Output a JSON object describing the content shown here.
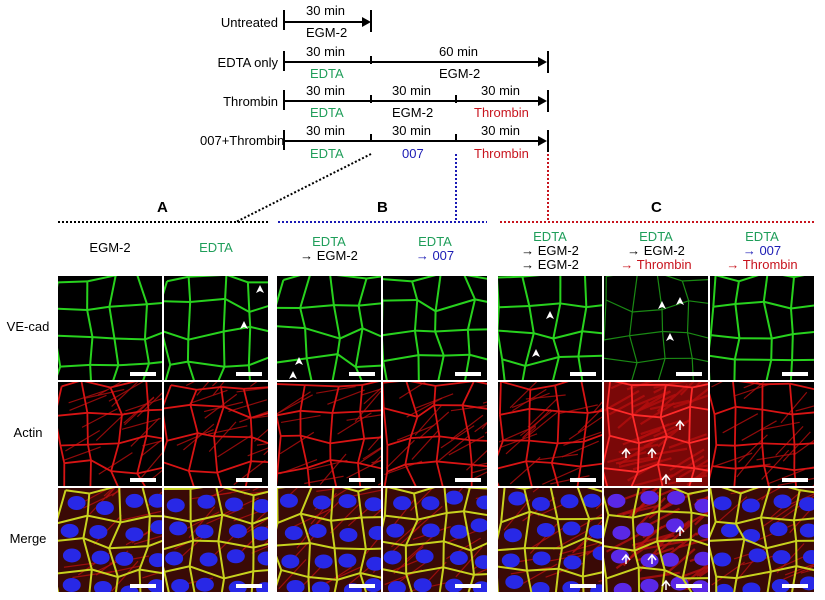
{
  "timeline": {
    "rows": [
      {
        "label": "Untreated",
        "segments": [
          {
            "duration": "30 min",
            "treatment": "EGM-2",
            "color": "black"
          }
        ]
      },
      {
        "label": "EDTA only",
        "segments": [
          {
            "duration": "30 min",
            "treatment": "EDTA",
            "color": "green"
          },
          {
            "duration": "60 min",
            "treatment": "EGM-2",
            "color": "black"
          }
        ]
      },
      {
        "label": "Thrombin",
        "segments": [
          {
            "duration": "30 min",
            "treatment": "EDTA",
            "color": "green"
          },
          {
            "duration": "30 min",
            "treatment": "EGM-2",
            "color": "black"
          },
          {
            "duration": "30 min",
            "treatment": "Thrombin",
            "color": "red"
          }
        ]
      },
      {
        "label": "007+Thrombin",
        "segments": [
          {
            "duration": "30 min",
            "treatment": "EDTA",
            "color": "green"
          },
          {
            "duration": "30 min",
            "treatment": "007",
            "color": "blue"
          },
          {
            "duration": "30 min",
            "treatment": "Thrombin",
            "color": "red"
          }
        ]
      }
    ]
  },
  "sections": [
    {
      "letter": "A",
      "line_color": "#000000"
    },
    {
      "letter": "B",
      "line_color": "#1a1ab4"
    },
    {
      "letter": "C",
      "line_color": "#c8141e"
    }
  ],
  "columns": [
    {
      "lines": [
        {
          "text": "EGM-2",
          "color": "black"
        }
      ]
    },
    {
      "lines": [
        {
          "text": "EDTA",
          "color": "green"
        }
      ]
    },
    {
      "lines": [
        {
          "text": "EDTA",
          "color": "green"
        },
        {
          "text": "→ EGM-2",
          "color": "black"
        }
      ]
    },
    {
      "lines": [
        {
          "text": "EDTA",
          "color": "green"
        },
        {
          "text": "→ 007",
          "color": "blue"
        }
      ]
    },
    {
      "lines": [
        {
          "text": "EDTA",
          "color": "green"
        },
        {
          "text": "→ EGM-2",
          "color": "black"
        },
        {
          "text": "→ EGM-2",
          "color": "black"
        }
      ]
    },
    {
      "lines": [
        {
          "text": "EDTA",
          "color": "green"
        },
        {
          "text": "→ EGM-2",
          "color": "black"
        },
        {
          "text": "→ Thrombin",
          "color": "red"
        }
      ]
    },
    {
      "lines": [
        {
          "text": "EDTA",
          "color": "green"
        },
        {
          "text": "→ 007",
          "color": "blue"
        },
        {
          "text": "→ Thrombin",
          "color": "red"
        }
      ]
    }
  ],
  "channels": [
    {
      "label": "VE-cad",
      "color": "#22c81e"
    },
    {
      "label": "Actin",
      "color": "#e01414"
    },
    {
      "label": "Merge",
      "color": "#c8c814"
    }
  ],
  "colors": {
    "green_text": "#1f9e5a",
    "blue_text": "#1a1ab4",
    "red_text": "#c8141e",
    "nucleus_blue": "#2828e6"
  }
}
